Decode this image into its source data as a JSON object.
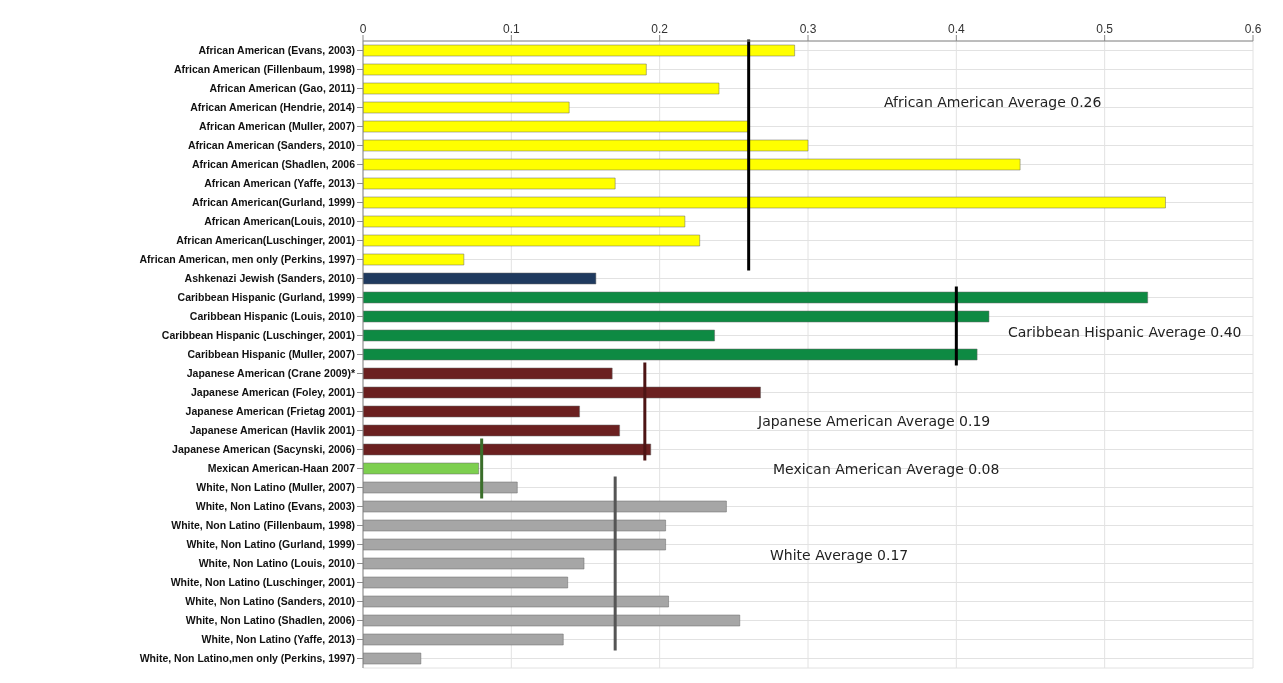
{
  "chart_data": {
    "type": "bar",
    "orientation": "horizontal",
    "categories": [
      "African American (Evans, 2003)",
      "African American (Fillenbaum, 1998)",
      "African American (Gao, 2011)",
      "African American (Hendrie, 2014)",
      "African American (Muller, 2007)",
      "African American (Sanders, 2010)",
      "African American (Shadlen, 2006",
      "African American (Yaffe, 2013)",
      "African American(Gurland, 1999)",
      "African American(Louis, 2010)",
      "African American(Luschinger, 2001)",
      "African American, men only (Perkins, 1997)",
      "Ashkenazi Jewish (Sanders, 2010)",
      "Caribbean Hispanic (Gurland, 1999)",
      "Caribbean Hispanic (Louis, 2010)",
      "Caribbean Hispanic (Luschinger, 2001)",
      "Caribbean Hispanic (Muller, 2007)",
      "Japanese American (Crane 2009)*",
      "Japanese American (Foley, 2001)",
      "Japanese American (Frietag 2001)",
      "Japanese American (Havlik 2001)",
      "Japanese American (Sacynski, 2006)",
      "Mexican American-Haan 2007",
      "White, Non Latino  (Muller, 2007)",
      "White, Non Latino (Evans, 2003)",
      "White, Non Latino (Fillenbaum, 1998)",
      "White, Non Latino (Gurland, 1999)",
      "White, Non Latino (Louis, 2010)",
      "White, Non Latino (Luschinger, 2001)",
      "White, Non Latino (Sanders, 2010)",
      "White, Non Latino (Shadlen, 2006)",
      "White, Non Latino (Yaffe, 2013)",
      "White, Non Latino,men only  (Perkins, 1997)"
    ],
    "values": [
      0.291,
      0.191,
      0.24,
      0.139,
      0.26,
      0.3,
      0.443,
      0.17,
      0.541,
      0.217,
      0.227,
      0.068,
      0.157,
      0.529,
      0.422,
      0.237,
      0.414,
      0.168,
      0.268,
      0.146,
      0.173,
      0.194,
      0.078,
      0.104,
      0.245,
      0.204,
      0.204,
      0.149,
      0.138,
      0.206,
      0.254,
      0.135,
      0.039
    ],
    "colors": [
      "#ffff00",
      "#ffff00",
      "#ffff00",
      "#ffff00",
      "#ffff00",
      "#ffff00",
      "#ffff00",
      "#ffff00",
      "#ffff00",
      "#ffff00",
      "#ffff00",
      "#ffff00",
      "#1f3a5f",
      "#0e8a43",
      "#0e8a43",
      "#0e8a43",
      "#0e8a43",
      "#6b2020",
      "#6b2020",
      "#6b2020",
      "#6b2020",
      "#6b2020",
      "#7dcf4f",
      "#a6a6a6",
      "#a6a6a6",
      "#a6a6a6",
      "#a6a6a6",
      "#a6a6a6",
      "#a6a6a6",
      "#a6a6a6",
      "#a6a6a6",
      "#a6a6a6",
      "#a6a6a6"
    ],
    "xlim": [
      0,
      0.6
    ],
    "xticks": [
      0,
      0.1,
      0.2,
      0.3,
      0.4,
      0.5,
      0.6
    ],
    "grid": true,
    "ref_lines": [
      {
        "axis": "x",
        "value": 0.26,
        "color": "#000000"
      },
      {
        "axis": "x",
        "value": 0.4,
        "color": "#000000"
      },
      {
        "axis": "x",
        "value": 0.19,
        "color": "#4d1414"
      },
      {
        "axis": "x",
        "value": 0.08,
        "color": "#3a6e2a"
      },
      {
        "axis": "x",
        "value": 0.17,
        "color": "#555555"
      }
    ],
    "annotations": [
      "African American Average 0.26",
      "Caribbean Hispanic Average 0.40",
      "Japanese American Average 0.19",
      "Mexican American Average 0.08",
      "White Average 0.17"
    ]
  }
}
